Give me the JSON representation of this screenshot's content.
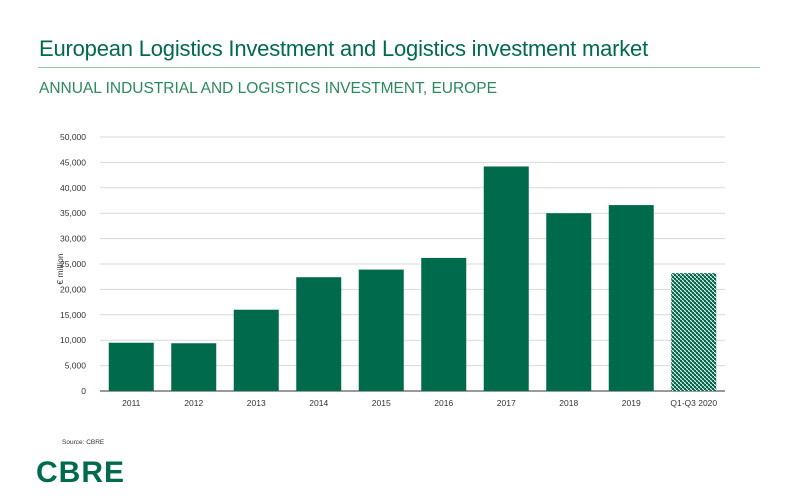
{
  "header": {
    "title": "European Logistics Investment and Logistics investment market",
    "subtitle": "ANNUAL INDUSTRIAL AND LOGISTICS INVESTMENT, EUROPE"
  },
  "footer": {
    "source": "Source: CBRE",
    "logo_text": "CBRE"
  },
  "colors": {
    "brand_green": "#006a4d",
    "accent_green": "#2a8a5a"
  },
  "chart_data": {
    "type": "bar",
    "title": "ANNUAL INDUSTRIAL AND LOGISTICS INVESTMENT, EUROPE",
    "xlabel": "",
    "ylabel": "€ million",
    "ylim": [
      0,
      50000
    ],
    "yticks": [
      0,
      5000,
      10000,
      15000,
      20000,
      25000,
      30000,
      35000,
      40000,
      45000,
      50000
    ],
    "ytick_labels": [
      "0",
      "5,000",
      "10,000",
      "15,000",
      "20,000",
      "25,000",
      "30,000",
      "35,000",
      "40,000",
      "45,000",
      "50,000"
    ],
    "categories": [
      "2011",
      "2012",
      "2013",
      "2014",
      "2015",
      "2016",
      "2017",
      "2018",
      "2019",
      "Q1-Q3 2020"
    ],
    "values": [
      9500,
      9400,
      16000,
      22400,
      23900,
      26200,
      44200,
      35000,
      36600,
      23200
    ],
    "patterned_categories": [
      "Q1-Q3 2020"
    ],
    "grid": true,
    "bar_color": "#006a4d"
  }
}
